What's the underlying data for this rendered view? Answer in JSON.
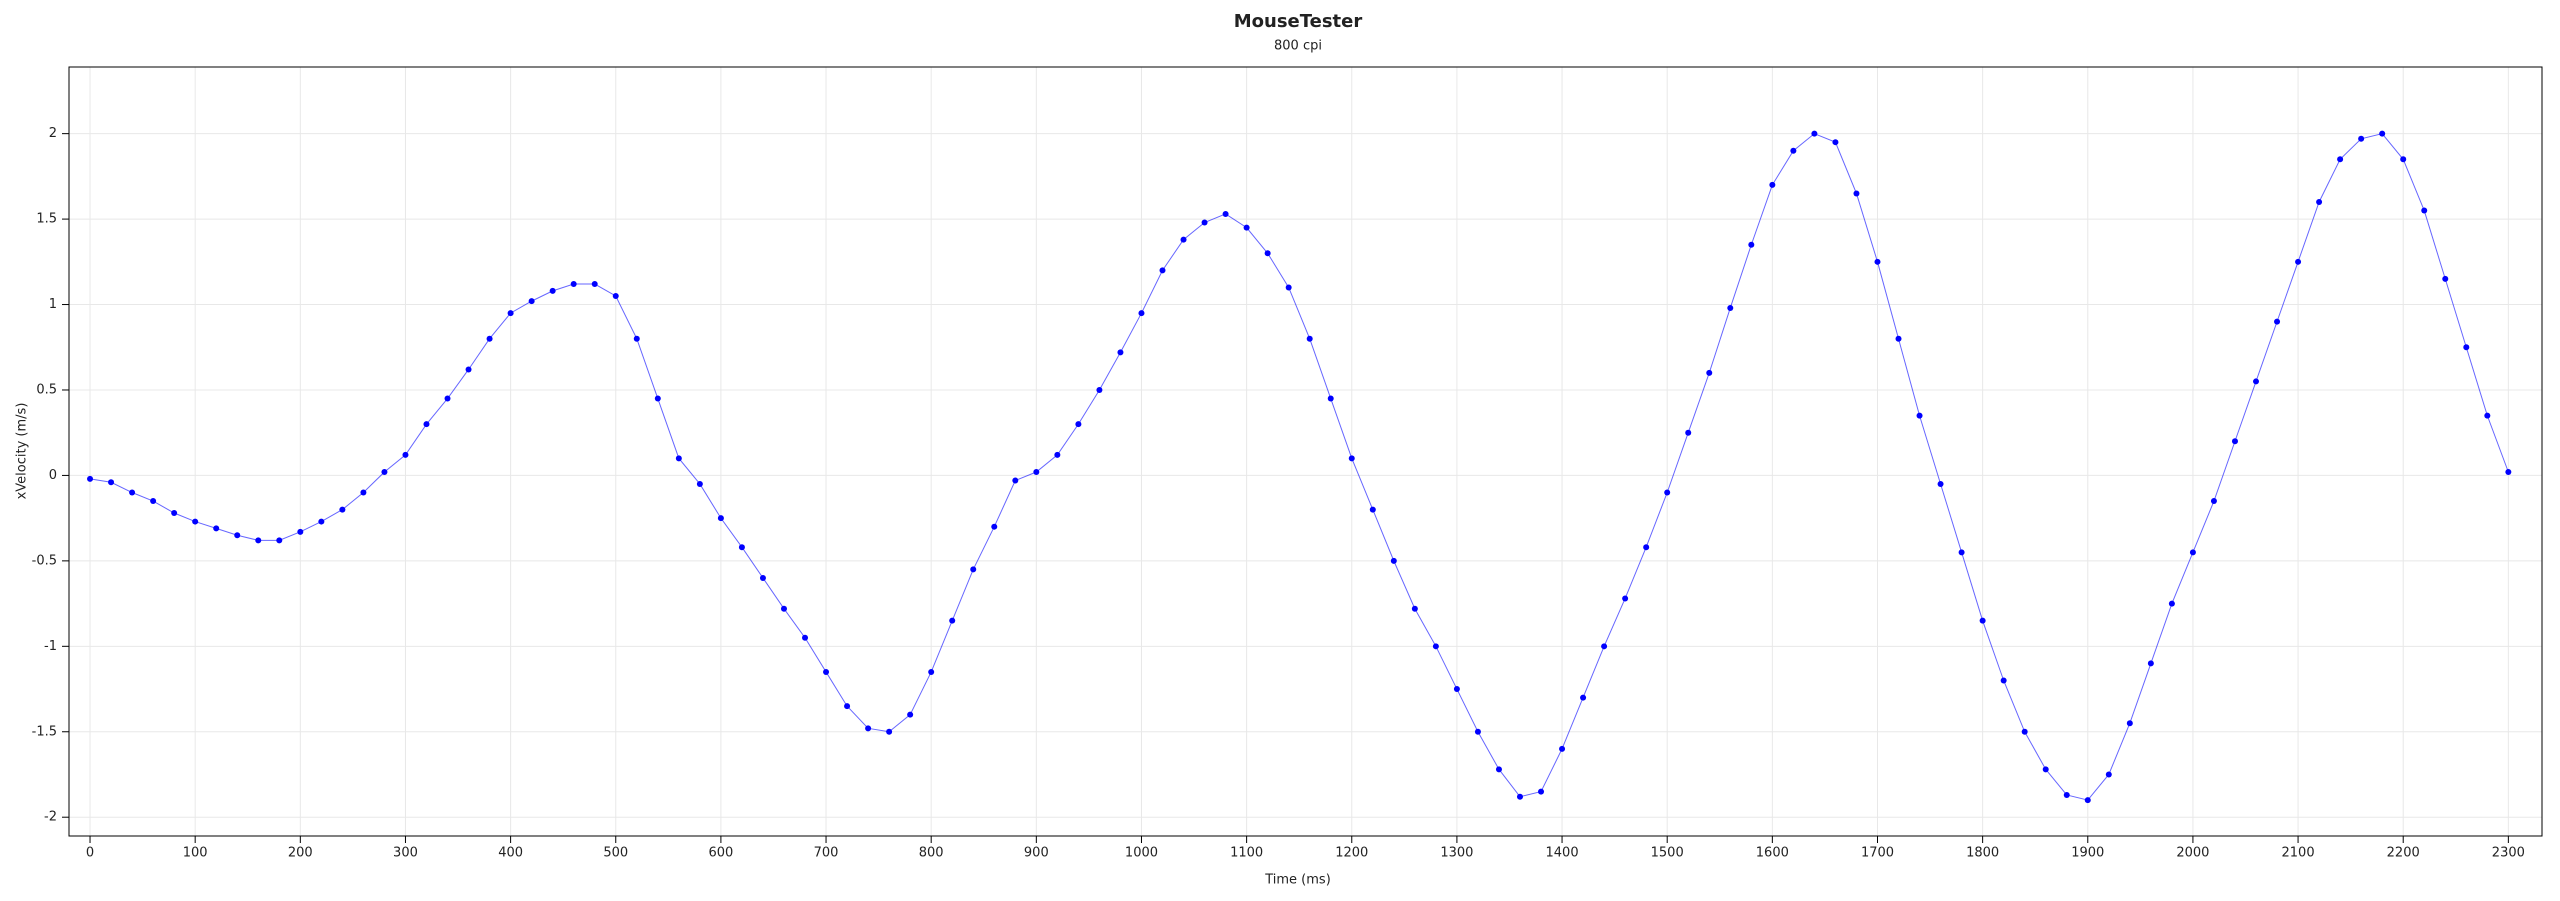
{
  "chart_data": {
    "type": "scatter",
    "title": "MouseTester",
    "subtitle": "800 cpi",
    "x_label": "Time (ms)",
    "y_label": "xVelocity (m/s)",
    "x": [
      0,
      20,
      40,
      60,
      80,
      100,
      120,
      140,
      160,
      180,
      200,
      220,
      240,
      260,
      280,
      300,
      320,
      340,
      360,
      380,
      400,
      420,
      440,
      460,
      480,
      500,
      520,
      540,
      560,
      580,
      600,
      620,
      640,
      660,
      680,
      700,
      720,
      740,
      760,
      780,
      800,
      820,
      840,
      860,
      880,
      900,
      920,
      940,
      960,
      980,
      1000,
      1020,
      1040,
      1060,
      1080,
      1100,
      1120,
      1140,
      1160,
      1180,
      1200,
      1220,
      1240,
      1260,
      1280,
      1300,
      1320,
      1340,
      1360,
      1380,
      1400,
      1420,
      1440,
      1460,
      1480,
      1500,
      1520,
      1540,
      1560,
      1580,
      1600,
      1620,
      1640,
      1660,
      1680,
      1700,
      1720,
      1740,
      1760,
      1780,
      1800,
      1820,
      1840,
      1860,
      1880,
      1900,
      1920,
      1940,
      1960,
      1980,
      2000,
      2020,
      2040,
      2060,
      2080,
      2100,
      2120,
      2140,
      2160,
      2180,
      2200,
      2220,
      2240,
      2260,
      2280,
      2300
    ],
    "series": [
      {
        "color": "#0000ff",
        "values": [
          -0.02,
          -0.04,
          -0.1,
          -0.15,
          -0.22,
          -0.27,
          -0.31,
          -0.35,
          -0.38,
          -0.38,
          -0.33,
          -0.27,
          -0.2,
          -0.1,
          0.02,
          0.12,
          0.3,
          0.45,
          0.62,
          0.8,
          0.95,
          1.02,
          1.08,
          1.12,
          1.12,
          1.05,
          0.8,
          0.45,
          0.1,
          -0.05,
          -0.25,
          -0.42,
          -0.6,
          -0.78,
          -0.95,
          -1.15,
          -1.35,
          -1.48,
          -1.5,
          -1.4,
          -1.15,
          -0.85,
          -0.55,
          -0.3,
          -0.03,
          0.02,
          0.12,
          0.3,
          0.5,
          0.72,
          0.95,
          1.2,
          1.38,
          1.48,
          1.53,
          1.45,
          1.3,
          1.1,
          0.8,
          0.45,
          0.1,
          -0.2,
          -0.5,
          -0.78,
          -1.0,
          -1.25,
          -1.5,
          -1.72,
          -1.88,
          -1.85,
          -1.6,
          -1.3,
          -1.0,
          -0.72,
          -0.42,
          -0.1,
          0.25,
          0.6,
          0.98,
          1.35,
          1.7,
          1.9,
          2.0,
          1.95,
          1.65,
          1.25,
          0.8,
          0.35,
          -0.05,
          -0.45,
          -0.85,
          -1.2,
          -1.5,
          -1.72,
          -1.87,
          -1.9,
          -1.75,
          -1.45,
          -1.1,
          -0.75,
          -0.45,
          -0.15,
          0.2,
          0.55,
          0.9,
          1.25,
          1.6,
          1.85,
          1.97,
          2.0,
          1.85,
          1.55,
          1.15,
          0.75,
          0.35,
          0.02
        ]
      }
    ],
    "xlim": [
      -20,
      2332
    ],
    "ylim": [
      -2.11,
      2.39
    ],
    "xticks": [
      0,
      100,
      200,
      300,
      400,
      500,
      600,
      700,
      800,
      900,
      1000,
      1100,
      1200,
      1300,
      1400,
      1500,
      1600,
      1700,
      1800,
      1900,
      2000,
      2100,
      2200,
      2300
    ],
    "yticks": [
      -2,
      -1.5,
      -1,
      -0.5,
      0,
      0.5,
      1,
      1.5,
      2
    ],
    "grid": true
  }
}
